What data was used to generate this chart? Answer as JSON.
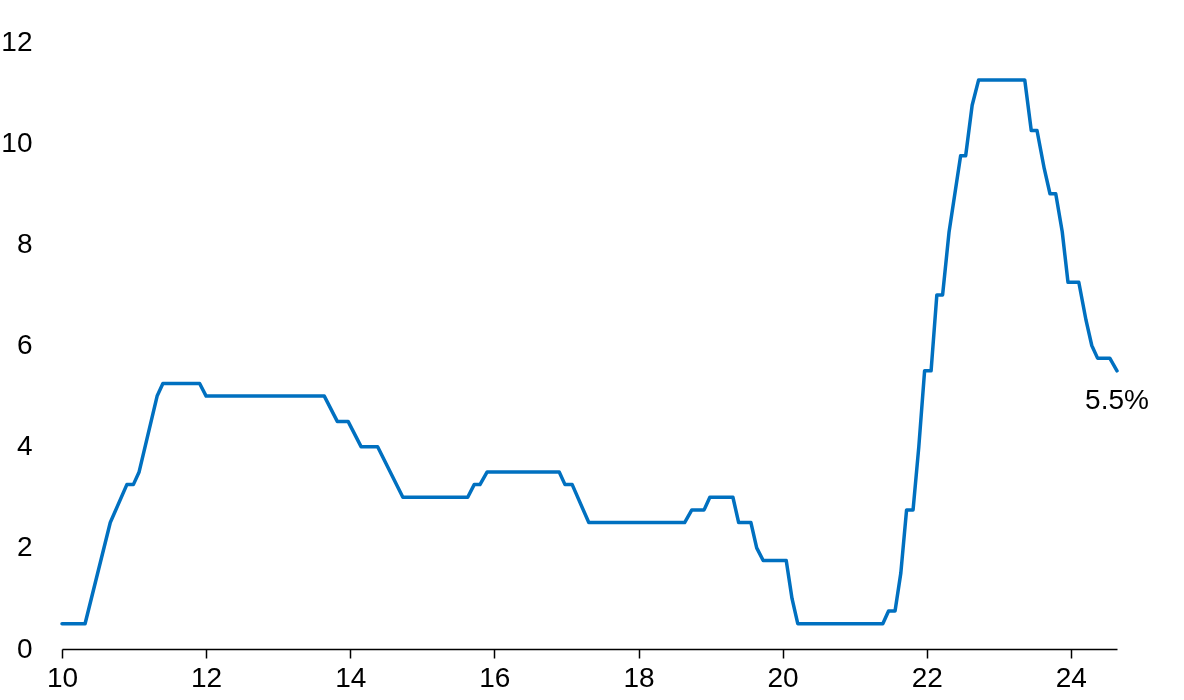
{
  "chart_data": {
    "type": "line",
    "x": [
      10,
      10.32,
      10.67,
      10.9,
      10.99,
      11.07,
      11.32,
      11.4,
      11.91,
      12.0,
      13.64,
      13.82,
      13.97,
      14.15,
      14.38,
      14.73,
      15.63,
      15.72,
      15.8,
      15.9,
      16.9,
      16.98,
      17.08,
      17.31,
      18.64,
      18.74,
      18.91,
      18.99,
      19.31,
      19.39,
      19.56,
      19.64,
      19.73,
      20.05,
      20.13,
      20.21,
      21.39,
      21.47,
      21.56,
      21.64,
      21.72,
      21.81,
      21.89,
      21.97,
      22.06,
      22.14,
      22.22,
      22.31,
      22.47,
      22.54,
      22.63,
      22.72,
      23.36,
      23.45,
      23.53,
      23.63,
      23.71,
      23.79,
      23.88,
      23.96,
      24.11,
      24.21,
      24.29,
      24.37,
      24.54,
      24.64
    ],
    "series": [
      {
        "color": "#0070c0",
        "values": [
          0.5,
          0.5,
          2.5,
          3.25,
          3.25,
          3.5,
          5.0,
          5.25,
          5.25,
          5.0,
          5.0,
          4.5,
          4.5,
          4.0,
          4.0,
          3.0,
          3.0,
          3.25,
          3.25,
          3.5,
          3.5,
          3.25,
          3.25,
          2.5,
          2.5,
          2.75,
          2.75,
          3.0,
          3.0,
          2.5,
          2.5,
          2.0,
          1.75,
          1.75,
          1.0,
          0.5,
          0.5,
          0.75,
          0.75,
          1.5,
          2.75,
          2.75,
          4.0,
          5.5,
          5.5,
          7.0,
          7.0,
          8.25,
          9.75,
          9.75,
          10.75,
          11.25,
          11.25,
          10.25,
          10.25,
          9.5,
          9.0,
          9.0,
          8.25,
          7.25,
          7.25,
          6.5,
          6.0,
          5.75,
          5.75,
          5.5
        ]
      }
    ],
    "xlim": [
      10,
      24.64
    ],
    "xticks": [
      10,
      12,
      14,
      16,
      18,
      20,
      22,
      24
    ],
    "ylim": [
      0,
      12
    ],
    "yticks": [
      0,
      2,
      4,
      6,
      8,
      10,
      12
    ],
    "grid": false,
    "marker": "none",
    "line_style": "solid",
    "annotations": [
      {
        "text": "5.5%",
        "x": 24.64,
        "y": 5.5
      }
    ]
  }
}
